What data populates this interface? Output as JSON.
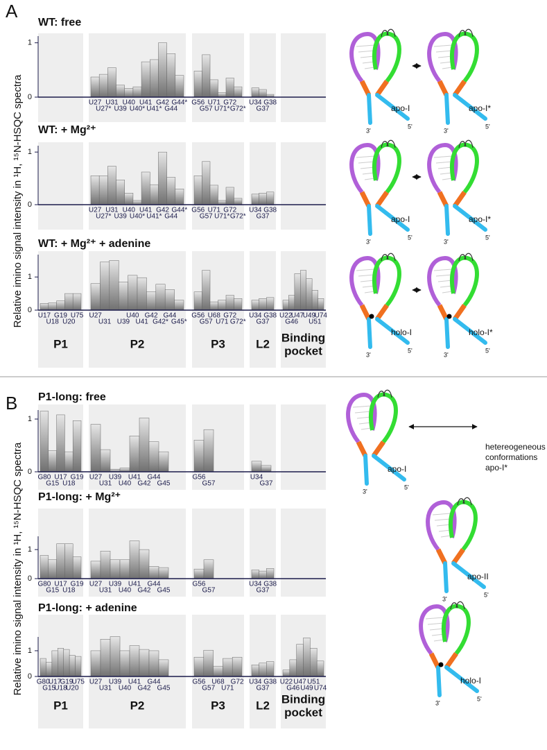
{
  "panels": [
    {
      "label": "A",
      "y_axis_label": "Relative imino signal intensity in ¹H, ¹⁵N-HSQC spectra",
      "regions": [
        {
          "name": [
            "P1"
          ],
          "color": "#5b86a8"
        },
        {
          "name": [
            "P2"
          ],
          "color": "#b040c0"
        },
        {
          "name": [
            "P3"
          ],
          "color": "#5ccc3c"
        },
        {
          "name": [
            "L2"
          ],
          "color": "#b040c0"
        },
        {
          "name": [
            "Binding",
            "pocket"
          ],
          "color": "#f07020"
        }
      ],
      "schemes": [
        {
          "states": [
            {
              "label": [
                "apo-I"
              ],
              "ends": [
                "5'",
                "3'"
              ]
            },
            {
              "label": [
                "apo-I*"
              ],
              "ends": [
                "5'",
                "3'"
              ]
            }
          ]
        },
        {
          "states": [
            {
              "label": [
                "apo-I"
              ],
              "ends": [
                "5'",
                "3'"
              ]
            },
            {
              "label": [
                "apo-I*"
              ],
              "ends": [
                "5'",
                "3'"
              ]
            }
          ]
        },
        {
          "states": [
            {
              "label": [
                "holo-I"
              ],
              "ends": [
                "5'",
                "3'"
              ],
              "ligand": true
            },
            {
              "label": [
                "holo-I*"
              ],
              "ends": [
                "5'",
                "3'"
              ],
              "ligand": true
            }
          ]
        }
      ]
    },
    {
      "label": "B",
      "y_axis_label": "Relative imino signal intensity in ¹H, ¹⁵N-HSQC spectra",
      "regions": [
        {
          "name": [
            "P1"
          ],
          "color": "#5b86a8"
        },
        {
          "name": [
            "P2"
          ],
          "color": "#b040c0"
        },
        {
          "name": [
            "P3"
          ],
          "color": "#5ccc3c"
        },
        {
          "name": [
            "L2"
          ],
          "color": "#b040c0"
        },
        {
          "name": [
            "Binding",
            "pocket"
          ],
          "color": "#f07020"
        }
      ],
      "schemes": [
        {
          "states": [
            {
              "label": [
                "apo-I"
              ],
              "ends": [
                "5'",
                "3'"
              ]
            },
            {
              "label": [
                "hetereogeneous",
                "conformations",
                "apo-I*"
              ]
            }
          ]
        },
        {
          "states": [
            {
              "label": [
                "apo-II"
              ],
              "ends": [
                "5'",
                "3'"
              ]
            }
          ]
        },
        {
          "states": [
            {
              "label": [
                "holo-I"
              ],
              "ends": [
                "5'",
                "3'"
              ],
              "ligand": true
            }
          ]
        }
      ]
    }
  ],
  "chart_data": [
    {
      "type": "bar",
      "title": "WT: free",
      "color": "#707070",
      "ylim": [
        0,
        1.2
      ],
      "yticks": [
        0,
        1
      ],
      "groups": [
        {
          "categories": [],
          "values": []
        },
        {
          "categories": [
            "U27",
            "U27*",
            "U31",
            "U39",
            "U40",
            "U40*",
            "U41",
            "U41*",
            "G42",
            "G44",
            "G44*"
          ],
          "values": [
            0.37,
            0.42,
            0.54,
            0.22,
            0.16,
            0.19,
            0.65,
            0.69,
            1.0,
            0.8,
            0.4
          ]
        },
        {
          "categories": [
            "G56",
            "G57",
            "U71",
            "U71*",
            "G72",
            "G72*"
          ],
          "values": [
            0.48,
            0.78,
            0.32,
            0.08,
            0.35,
            0.19
          ]
        },
        {
          "categories": [
            "U34",
            "G37",
            "G38"
          ],
          "values": [
            0.17,
            0.14,
            0.05
          ]
        },
        {
          "categories": [],
          "values": []
        }
      ]
    },
    {
      "type": "bar",
      "title": "WT: + Mg²⁺",
      "color": "#707070",
      "ylim": [
        0,
        1.2
      ],
      "yticks": [
        0,
        1
      ],
      "groups": [
        {
          "categories": [],
          "values": []
        },
        {
          "categories": [
            "U27",
            "U27*",
            "U31",
            "U39",
            "U40",
            "U40*",
            "U41",
            "U41*",
            "G42",
            "G44",
            "G44*"
          ],
          "values": [
            0.55,
            0.55,
            0.73,
            0.47,
            0.22,
            0.08,
            0.62,
            0.38,
            1.0,
            0.52,
            0.3
          ]
        },
        {
          "categories": [
            "G56",
            "G57",
            "U71",
            "U71*",
            "G72",
            "G72*"
          ],
          "values": [
            0.55,
            0.82,
            0.37,
            0.08,
            0.33,
            0.12
          ]
        },
        {
          "categories": [
            "U34",
            "G37",
            "G38"
          ],
          "values": [
            0.2,
            0.22,
            0.24
          ]
        },
        {
          "categories": [],
          "values": []
        }
      ]
    },
    {
      "type": "bar",
      "title": "WT: + Mg²⁺ + adenine",
      "color": "#707070",
      "ylim": [
        0,
        1.8
      ],
      "yticks": [
        0,
        1
      ],
      "groups": [
        {
          "categories": [
            "U17",
            "U18",
            "G19",
            "U20",
            "U75"
          ],
          "values": [
            0.2,
            0.22,
            0.28,
            0.5,
            0.5
          ]
        },
        {
          "categories": [
            "U27",
            "U31",
            null,
            "U39",
            "U40",
            "U41",
            "G42",
            "G42*",
            "G44",
            "G45*"
          ],
          "values": [
            0.8,
            1.45,
            1.5,
            0.85,
            1.05,
            0.98,
            0.55,
            0.78,
            0.62,
            0.3
          ]
        },
        {
          "categories": [
            "G56",
            "G57",
            "U68",
            "U71",
            "G72",
            "G72*"
          ],
          "values": [
            0.55,
            1.2,
            0.25,
            0.3,
            0.45,
            0.35
          ]
        },
        {
          "categories": [
            "U34",
            "G37",
            "G38"
          ],
          "values": [
            0.3,
            0.35,
            0.38
          ]
        },
        {
          "categories": [
            "U22",
            "G46",
            "U47",
            null,
            "U49",
            "U51",
            "U74"
          ],
          "values": [
            0.3,
            0.45,
            1.1,
            1.2,
            0.95,
            0.6,
            0.35
          ]
        }
      ]
    },
    {
      "type": "bar",
      "title": "P1-long: free",
      "color": "#707070",
      "ylim": [
        0,
        1.25
      ],
      "yticks": [
        0,
        1
      ],
      "groups": [
        {
          "categories": [
            "G80",
            "G15",
            "U17",
            "U18",
            "G19"
          ],
          "values": [
            1.15,
            0.4,
            1.08,
            0.38,
            0.97
          ]
        },
        {
          "categories": [
            "U27",
            "U31",
            "U39",
            "U40",
            "U41",
            "G42",
            "G44",
            "G45"
          ],
          "values": [
            0.9,
            0.42,
            0.05,
            0.07,
            0.68,
            1.02,
            0.57,
            0.38
          ]
        },
        {
          "categories": [
            "G56",
            "G57"
          ],
          "values": [
            0.6,
            0.8
          ]
        },
        {
          "categories": [
            "U34",
            "G37"
          ],
          "values": [
            0.2,
            0.12
          ]
        },
        {
          "categories": [],
          "values": []
        }
      ]
    },
    {
      "type": "bar",
      "title": "P1-long: + Mg²⁺",
      "color": "#707070",
      "ylim": [
        0,
        1.6
      ],
      "yticks": [
        0,
        1
      ],
      "groups": [
        {
          "categories": [
            "G80",
            "G15",
            "U17",
            "U18",
            "G19"
          ],
          "values": [
            0.8,
            0.65,
            1.2,
            1.2,
            0.75
          ]
        },
        {
          "categories": [
            "U27",
            "U31",
            "U39",
            "U40",
            "U41",
            "G42",
            "G44",
            "G45"
          ],
          "values": [
            0.6,
            0.95,
            0.65,
            0.65,
            1.3,
            1.0,
            0.42,
            0.38
          ]
        },
        {
          "categories": [
            "G56",
            "G57"
          ],
          "values": [
            0.33,
            0.65
          ]
        },
        {
          "categories": [
            "U34",
            "G37",
            "G38"
          ],
          "values": [
            0.3,
            0.26,
            0.35
          ]
        },
        {
          "categories": [],
          "values": []
        }
      ]
    },
    {
      "type": "bar",
      "title": "P1-long:  + adenine",
      "color": "#707070",
      "ylim": [
        0,
        1.7
      ],
      "yticks": [
        0,
        1
      ],
      "groups": [
        {
          "categories": [
            "G80",
            "G15",
            "U17",
            "U18",
            "G19",
            "U20",
            "U75"
          ],
          "values": [
            0.7,
            0.55,
            1.0,
            1.1,
            1.05,
            0.82,
            0.78
          ]
        },
        {
          "categories": [
            "U27",
            "U31",
            "U39",
            "U40",
            "U41",
            "G42",
            "G44",
            "G45"
          ],
          "values": [
            1.0,
            1.45,
            1.55,
            1.0,
            1.2,
            1.05,
            1.0,
            0.65
          ]
        },
        {
          "categories": [
            "G56",
            "G57",
            "U68",
            "U71",
            "G72"
          ],
          "values": [
            0.75,
            1.02,
            0.4,
            0.7,
            0.75
          ]
        },
        {
          "categories": [
            "U34",
            "G37",
            "G38"
          ],
          "values": [
            0.45,
            0.52,
            0.58
          ]
        },
        {
          "categories": [
            "U22",
            "G46",
            "U47",
            "U49",
            "U51",
            "U74"
          ],
          "values": [
            0.25,
            0.65,
            1.25,
            1.5,
            1.1,
            0.6
          ]
        }
      ]
    }
  ]
}
